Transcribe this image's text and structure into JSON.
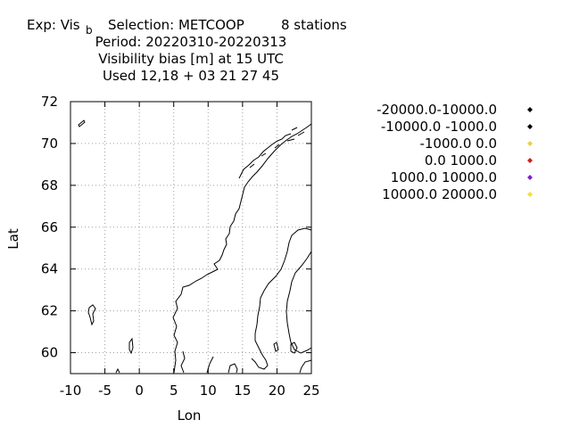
{
  "header": {
    "exp_label": "Exp: Vis",
    "exp_sub": "b",
    "selection": "Selection: METCOOP",
    "stations": "8 stations",
    "period": "Period: 20220310-20220313",
    "quantity": "Visibility bias [m] at  15 UTC",
    "used": "Used  12,18 + 03 21 27 45"
  },
  "chart_data": {
    "type": "scatter",
    "xlabel": "Lon",
    "ylabel": "Lat",
    "xlim": [
      -10,
      25
    ],
    "ylim": [
      59,
      72
    ],
    "xticks": [
      -10,
      -5,
      0,
      5,
      10,
      15,
      20,
      25
    ],
    "yticks": [
      60,
      62,
      64,
      66,
      68,
      70,
      72
    ],
    "grid": true,
    "legend_position": "right",
    "legend": [
      {
        "label": "-20000.0-10000.0",
        "color": "#000000"
      },
      {
        "label": "-10000.0 -1000.0",
        "color": "#000000"
      },
      {
        "label": "-1000.0 0.0",
        "color": "#f0d040"
      },
      {
        "label": "0.0 1000.0",
        "color": "#d02020"
      },
      {
        "label": "1000.0 10000.0",
        "color": "#8020d0"
      },
      {
        "label": "10000.0 20000.0",
        "color": "#f0e040"
      }
    ],
    "series": []
  }
}
